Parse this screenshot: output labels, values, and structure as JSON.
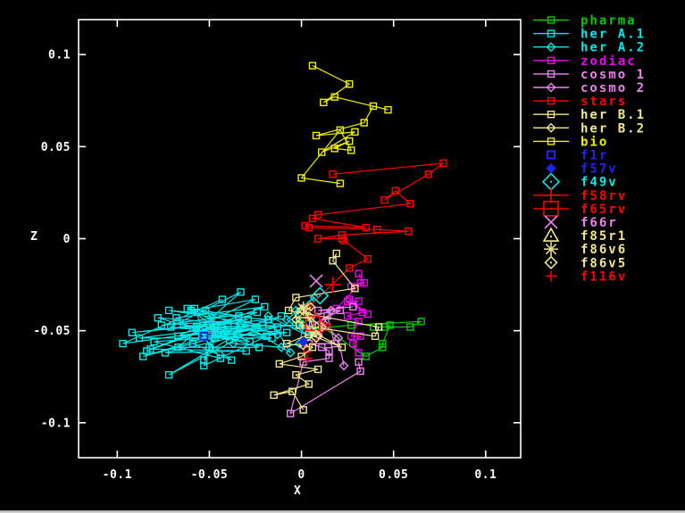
{
  "window": {
    "background": "#000000",
    "foreground": "#ffffff"
  },
  "chart_data": {
    "type": "line-scatter",
    "title": "",
    "xlabel": "X",
    "ylabel": "Z",
    "xlim": [
      -0.121,
      0.119
    ],
    "ylim": [
      -0.119,
      0.119
    ],
    "grid": false,
    "legend_position": "outside-right-top",
    "x_ticks": {
      "values": [
        -0.1,
        -0.05,
        0,
        0.05,
        0.1
      ],
      "labels": [
        "-0.1",
        "-0.05",
        "0",
        "0.05",
        "0.1"
      ]
    },
    "y_ticks": {
      "values": [
        -0.1,
        -0.05,
        0,
        0.05,
        0.1
      ],
      "labels": [
        "-0.1",
        "-0.05",
        "0",
        "0.05",
        "0.1"
      ]
    },
    "series": [
      {
        "name": "pharma",
        "color": "#00cc00",
        "marker": "square",
        "line": true,
        "points": [
          [
            -0.001,
            -0.046
          ],
          [
            0.006,
            -0.049
          ],
          [
            0.027,
            -0.047
          ],
          [
            0.065,
            -0.045
          ],
          [
            0.059,
            -0.048
          ],
          [
            0.039,
            -0.048
          ],
          [
            0.045,
            -0.048
          ],
          [
            0.048,
            -0.047
          ],
          [
            0.044,
            -0.057
          ],
          [
            0.044,
            -0.059
          ],
          [
            0.035,
            -0.064
          ],
          [
            0.004,
            -0.043
          ]
        ]
      },
      {
        "name": "her A.1",
        "color": "#00e8e8",
        "marker": "square",
        "line": true,
        "points": [
          [
            -0.043,
            -0.033
          ],
          [
            -0.097,
            -0.057
          ],
          [
            -0.033,
            -0.048
          ],
          [
            -0.086,
            -0.064
          ],
          [
            -0.021,
            -0.047
          ],
          [
            -0.072,
            -0.039
          ],
          [
            -0.018,
            -0.044
          ],
          [
            -0.092,
            -0.051
          ],
          [
            -0.029,
            -0.044
          ],
          [
            -0.076,
            -0.047
          ],
          [
            -0.024,
            -0.04
          ],
          [
            -0.084,
            -0.061
          ],
          [
            -0.034,
            -0.042
          ],
          [
            -0.062,
            -0.038
          ],
          [
            -0.04,
            -0.048
          ],
          [
            -0.088,
            -0.054
          ],
          [
            -0.016,
            -0.054
          ],
          [
            -0.071,
            -0.048
          ],
          [
            -0.033,
            -0.029
          ],
          [
            -0.067,
            -0.059
          ],
          [
            -0.023,
            -0.059
          ],
          [
            -0.078,
            -0.043
          ],
          [
            -0.013,
            -0.048
          ],
          [
            -0.074,
            -0.062
          ],
          [
            -0.03,
            -0.061
          ],
          [
            -0.082,
            -0.06
          ],
          [
            -0.02,
            -0.037
          ],
          [
            -0.068,
            -0.043
          ],
          [
            -0.038,
            -0.066
          ],
          [
            -0.059,
            -0.057
          ],
          [
            -0.011,
            -0.042
          ],
          [
            -0.072,
            -0.074
          ],
          [
            -0.035,
            -0.052
          ],
          [
            -0.064,
            -0.047
          ],
          [
            -0.008,
            -0.051
          ],
          [
            -0.08,
            -0.056
          ],
          [
            -0.044,
            -0.065
          ],
          [
            -0.057,
            -0.048
          ],
          [
            -0.003,
            -0.047
          ],
          [
            -0.067,
            -0.053
          ],
          [
            -0.025,
            -0.033
          ],
          [
            -0.06,
            -0.039
          ],
          [
            -0.047,
            -0.048
          ],
          [
            -0.053,
            -0.069
          ],
          [
            -0.019,
            -0.053
          ],
          [
            -0.058,
            -0.038
          ],
          [
            -0.05,
            -0.059
          ],
          [
            -0.053,
            -0.066
          ],
          [
            -0.045,
            -0.051
          ],
          [
            -0.052,
            -0.039
          ],
          [
            -0.039,
            -0.055
          ],
          [
            -0.054,
            -0.052
          ],
          [
            -0.028,
            -0.056
          ],
          [
            -0.05,
            -0.047
          ],
          [
            -0.047,
            -0.054
          ]
        ]
      },
      {
        "name": "her A.2",
        "color": "#00e8e8",
        "marker": "diamond",
        "line": true,
        "points": [
          [
            -0.047,
            -0.054
          ],
          [
            -0.025,
            -0.049
          ],
          [
            -0.042,
            -0.052
          ],
          [
            -0.013,
            -0.052
          ],
          [
            -0.033,
            -0.046
          ],
          [
            -0.006,
            -0.062
          ],
          [
            -0.018,
            -0.042
          ],
          [
            0.004,
            -0.053
          ],
          [
            -0.008,
            -0.044
          ],
          [
            0.007,
            -0.032
          ],
          [
            -0.003,
            -0.039
          ],
          [
            0.001,
            -0.047
          ],
          [
            -0.001,
            -0.057
          ],
          [
            -0.011,
            -0.059
          ],
          [
            -0.037,
            -0.057
          ]
        ]
      },
      {
        "name": "zodiac",
        "color": "#f000f0",
        "marker": "square",
        "line": true,
        "points": [
          [
            0.031,
            -0.019
          ],
          [
            0.034,
            -0.024
          ],
          [
            0.027,
            -0.026
          ],
          [
            0.032,
            -0.024
          ],
          [
            0.019,
            -0.038
          ],
          [
            0.031,
            -0.034
          ],
          [
            0.025,
            -0.034
          ],
          [
            0.036,
            -0.041
          ],
          [
            0.026,
            -0.033
          ],
          [
            0.033,
            -0.04
          ],
          [
            0.025,
            -0.042
          ],
          [
            0.031,
            -0.045
          ],
          [
            0.027,
            -0.053
          ],
          [
            0.032,
            -0.053
          ],
          [
            0.028,
            -0.057
          ],
          [
            0.031,
            -0.062
          ]
        ]
      },
      {
        "name": "cosmo 1",
        "color": "#ee82ee",
        "marker": "square",
        "line": true,
        "points": [
          [
            0.028,
            -0.037
          ],
          [
            0.009,
            -0.039
          ],
          [
            0.021,
            -0.039
          ],
          [
            0.006,
            -0.047
          ],
          [
            0.014,
            -0.042
          ],
          [
            0.018,
            -0.057
          ],
          [
            0.004,
            -0.057
          ],
          [
            0.011,
            -0.059
          ],
          [
            0.015,
            -0.061
          ],
          [
            0.015,
            -0.065
          ],
          [
            0.001,
            -0.067
          ],
          [
            -0.006,
            -0.095
          ],
          [
            0.032,
            -0.072
          ],
          [
            0.031,
            -0.067
          ]
        ]
      },
      {
        "name": "cosmo 2",
        "color": "#ee82ee",
        "marker": "diamond",
        "line": true,
        "points": [
          [
            0.005,
            -0.043
          ],
          [
            0.016,
            -0.039
          ],
          [
            0.009,
            -0.052
          ],
          [
            0.012,
            -0.046
          ],
          [
            0.02,
            -0.054
          ],
          [
            0.023,
            -0.069
          ]
        ]
      },
      {
        "name": "stars",
        "color": "#ff0000",
        "marker": "square",
        "line": true,
        "points": [
          [
            0.017,
            0.035
          ],
          [
            0.077,
            0.041
          ],
          [
            0.069,
            0.035
          ],
          [
            0.045,
            0.021
          ],
          [
            0.051,
            0.026
          ],
          [
            0.059,
            0.019
          ],
          [
            0.009,
            0.013
          ],
          [
            0.006,
            0.011
          ],
          [
            0.035,
            0.006
          ],
          [
            0.002,
            0.007
          ],
          [
            0.004,
            0.006
          ],
          [
            0.041,
            0.005
          ],
          [
            0.058,
            0.004
          ],
          [
            0.022,
            0.002
          ],
          [
            0.009,
            0.0
          ],
          [
            0.022,
            0.0
          ],
          [
            0.023,
            -0.001
          ],
          [
            0.036,
            -0.011
          ],
          [
            0.026,
            -0.016
          ],
          [
            0.004,
            -0.037
          ],
          [
            0.014,
            -0.048
          ],
          [
            0.003,
            -0.06
          ]
        ]
      },
      {
        "name": "her B.1",
        "color": "#f0e68c",
        "marker": "square",
        "line": true,
        "points": [
          [
            0.019,
            -0.008
          ],
          [
            0.017,
            -0.012
          ],
          [
            0.029,
            -0.027
          ],
          [
            -0.003,
            -0.032
          ],
          [
            -0.007,
            -0.039
          ],
          [
            0.042,
            -0.048
          ],
          [
            0.04,
            -0.053
          ],
          [
            -0.001,
            -0.047
          ],
          [
            0.022,
            -0.059
          ],
          [
            0.004,
            -0.052
          ],
          [
            -0.008,
            -0.057
          ],
          [
            0.006,
            -0.059
          ],
          [
            0.0,
            -0.064
          ],
          [
            -0.012,
            -0.068
          ],
          [
            0.009,
            -0.071
          ],
          [
            -0.003,
            -0.074
          ],
          [
            0.004,
            -0.079
          ],
          [
            -0.015,
            -0.085
          ],
          [
            -0.005,
            -0.083
          ],
          [
            0.001,
            -0.093
          ]
        ]
      },
      {
        "name": "her B.2",
        "color": "#f0e68c",
        "marker": "diamond",
        "line": true,
        "points": [
          [
            0.005,
            -0.037
          ],
          [
            -0.003,
            -0.044
          ],
          [
            0.007,
            -0.051
          ],
          [
            0.004,
            -0.042
          ],
          [
            0.011,
            -0.048
          ],
          [
            0.001,
            -0.058
          ]
        ]
      },
      {
        "name": "bio",
        "color": "#f0f000",
        "marker": "square",
        "line": true,
        "points": [
          [
            0.006,
            0.094
          ],
          [
            0.026,
            0.084
          ],
          [
            0.012,
            0.074
          ],
          [
            0.018,
            0.077
          ],
          [
            0.047,
            0.07
          ],
          [
            0.039,
            0.072
          ],
          [
            0.034,
            0.063
          ],
          [
            0.008,
            0.056
          ],
          [
            0.029,
            0.058
          ],
          [
            0.011,
            0.047
          ],
          [
            0.026,
            0.053
          ],
          [
            0.018,
            0.049
          ],
          [
            0.027,
            0.048
          ],
          [
            0.021,
            0.059
          ],
          [
            0.0,
            0.033
          ],
          [
            0.021,
            0.03
          ]
        ]
      },
      {
        "name": "f1r",
        "color": "#2222ee",
        "marker": "fsquare",
        "line": false,
        "points": [
          [
            -0.053,
            -0.053
          ]
        ]
      },
      {
        "name": "f57v",
        "color": "#2222ee",
        "marker": "fdiamond",
        "line": false,
        "points": [
          [
            0.001,
            -0.056
          ]
        ]
      },
      {
        "name": "f49v",
        "color": "#00e8e8",
        "marker": "dia-lg",
        "line": false,
        "points": [
          [
            0.01,
            -0.031
          ]
        ]
      },
      {
        "name": "f58rv",
        "color": "#ff0000",
        "marker": "plus-lg",
        "line": false,
        "legend_line": true,
        "points": [
          [
            0.017,
            -0.025
          ]
        ]
      },
      {
        "name": "f65rv",
        "color": "#ff0000",
        "marker": "sq-lg",
        "line": false,
        "legend_line": true,
        "points": [
          [
            0.006,
            -0.046
          ]
        ]
      },
      {
        "name": "f66r",
        "color": "#ee82ee",
        "marker": "x-lg",
        "line": false,
        "points": [
          [
            0.008,
            -0.023
          ]
        ]
      },
      {
        "name": "f85r1",
        "color": "#f0e68c",
        "marker": "tri-lg",
        "line": false,
        "points": [
          [
            0.0,
            -0.04
          ]
        ]
      },
      {
        "name": "f86v6",
        "color": "#f0e68c",
        "marker": "star-lg",
        "line": false,
        "points": [
          [
            0.001,
            -0.038
          ]
        ]
      },
      {
        "name": "f86v5",
        "color": "#f0e68c",
        "marker": "dia-md",
        "line": false,
        "points": [
          [
            0.008,
            -0.053
          ]
        ]
      },
      {
        "name": "f116v",
        "color": "#ff0000",
        "marker": "plus-md",
        "line": false,
        "points": [
          [
            0.003,
            -0.065
          ]
        ]
      }
    ]
  }
}
